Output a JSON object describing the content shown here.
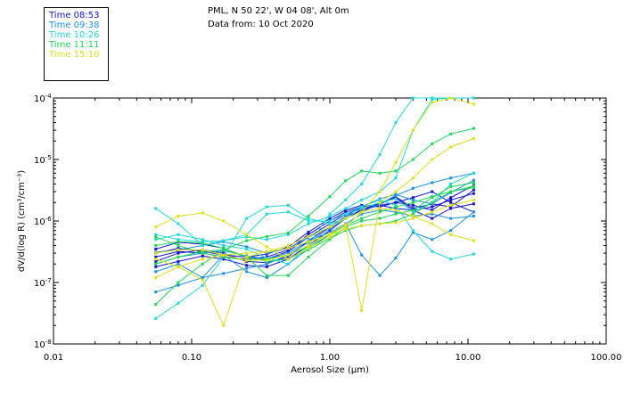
{
  "header": {
    "location": "PML, N 50 22', W 04 08', Alt 0m",
    "date_line": "Data from: 10 Oct 2020"
  },
  "legend": [
    {
      "label": "Time 08:53",
      "color": "#1414c8"
    },
    {
      "label": "Time 09:38",
      "color": "#1e90dc"
    },
    {
      "label": "Time 10:26",
      "color": "#22d8d8"
    },
    {
      "label": "Time 11:11",
      "color": "#22d65a"
    },
    {
      "label": "Time 15:10",
      "color": "#e0e020"
    }
  ],
  "chart_data": {
    "type": "line",
    "xscale": "log",
    "yscale": "log",
    "xlabel": "Aerosol Size (μm)",
    "ylabel": "dV/d(log R) (cm³/cm⁻³)",
    "xlim": [
      0.01,
      100.0
    ],
    "ylim": [
      1e-08,
      0.0001
    ],
    "x_ticks": [
      0.01,
      0.1,
      1.0,
      10.0,
      100.0
    ],
    "x_tick_labels": [
      "0.01",
      "0.10",
      "1.00",
      "10.00",
      "100.00"
    ],
    "y_ticks": [
      {
        "value": 0.0001,
        "base": "10",
        "exp": "-4"
      },
      {
        "value": 1e-05,
        "base": "10",
        "exp": "-5"
      },
      {
        "value": 1e-06,
        "base": "10",
        "exp": "-6"
      },
      {
        "value": 1e-07,
        "base": "10",
        "exp": "-7"
      },
      {
        "value": 1e-08,
        "base": "10",
        "exp": "-8"
      }
    ],
    "x": [
      0.055,
      0.08,
      0.12,
      0.17,
      0.25,
      0.35,
      0.5,
      0.7,
      1.0,
      1.3,
      1.7,
      2.3,
      3.0,
      4.0,
      5.5,
      7.5,
      11.0
    ],
    "series": [
      {
        "name": "Time 08:53",
        "color": "#1414c8",
        "values": [
          3.5e-07,
          4.5e-07,
          4.2e-07,
          3.6e-07,
          2.6e-07,
          2.4e-07,
          3.2e-07,
          5.5e-07,
          9e-07,
          1.3e-06,
          1.6e-06,
          1.8e-06,
          1.6e-06,
          1.5e-06,
          1.7e-06,
          2.2e-06,
          2.8e-06
        ]
      },
      {
        "name": "Time 08:53",
        "color": "#1414c8",
        "values": [
          2.2e-07,
          3e-07,
          3.4e-07,
          3e-07,
          2.2e-07,
          2.1e-07,
          2.6e-07,
          4.8e-07,
          8e-07,
          1.2e-06,
          1.5e-06,
          1.9e-06,
          2.4e-06,
          1.5e-06,
          1.1e-06,
          1.6e-06,
          1.9e-06
        ]
      },
      {
        "name": "Time 08:53",
        "color": "#1414c8",
        "values": [
          1.8e-07,
          2.2e-07,
          2.7e-07,
          2.4e-07,
          1.9e-07,
          1.8e-07,
          2.4e-07,
          4e-07,
          7e-07,
          1.1e-06,
          1.5e-06,
          1.8e-06,
          2e-06,
          2.4e-06,
          3e-06,
          2e-06,
          1.4e-06
        ]
      },
      {
        "name": "Time 08:53",
        "color": "#1414c8",
        "values": [
          2.6e-07,
          3.2e-07,
          3e-07,
          2.6e-07,
          2.4e-07,
          2.6e-07,
          3.4e-07,
          6e-07,
          1e-06,
          1.4e-06,
          1.7e-06,
          1.9e-06,
          2.5e-06,
          1.6e-06,
          1.9e-06,
          1.7e-06,
          3.2e-06
        ]
      },
      {
        "name": "Time 08:53",
        "color": "#1414c8",
        "values": [
          3e-07,
          3.6e-07,
          3.2e-07,
          2.8e-07,
          2.6e-07,
          2.9e-07,
          3.8e-07,
          6.6e-07,
          1.1e-06,
          1.5e-06,
          1.8e-06,
          1.7e-06,
          2e-06,
          1.8e-06,
          1.5e-06,
          2.4e-06,
          3.8e-06
        ]
      },
      {
        "name": "Time 09:38",
        "color": "#1e90dc",
        "values": [
          1.5e-07,
          2e-07,
          1.2e-07,
          2.8e-07,
          1.5e-07,
          1.2e-07,
          2e-07,
          3.5e-07,
          6e-07,
          9e-07,
          1.3e-06,
          1.5e-06,
          1.4e-06,
          1.2e-06,
          1.3e-06,
          1.1e-06,
          1.2e-06
        ]
      },
      {
        "name": "Time 09:38",
        "color": "#1e90dc",
        "values": [
          2e-07,
          2.6e-07,
          3e-07,
          3.3e-07,
          2.7e-07,
          2.4e-07,
          3e-07,
          4.8e-07,
          6.5e-07,
          9e-07,
          2.8e-07,
          1.3e-07,
          2.5e-07,
          6.5e-07,
          5e-07,
          7e-07,
          1.4e-06
        ]
      },
      {
        "name": "Time 09:38",
        "color": "#1e90dc",
        "values": [
          7e-08,
          9e-08,
          1.2e-07,
          1.4e-07,
          1.7e-07,
          2e-07,
          2.8e-07,
          4.5e-07,
          7.5e-07,
          1.1e-06,
          1.4e-06,
          1.9e-06,
          2.6e-06,
          3.4e-06,
          4.2e-06,
          5e-06,
          6e-06
        ]
      },
      {
        "name": "Time 09:38",
        "color": "#1e90dc",
        "values": [
          3.1e-07,
          3.4e-07,
          4e-07,
          4.6e-07,
          3.8e-07,
          3e-07,
          3.6e-07,
          5.4e-07,
          8e-07,
          1.2e-06,
          1.7e-06,
          2.3e-06,
          2.7e-06,
          2.2e-06,
          1.9e-06,
          2.9e-06,
          4.6e-06
        ]
      },
      {
        "name": "Time 10:26",
        "color": "#22d8d8",
        "values": [
          1.6e-06,
          9e-07,
          4e-07,
          4.8e-07,
          5.5e-07,
          5e-07,
          6e-07,
          9e-07,
          1.2e-06,
          1.6e-06,
          2.2e-06,
          3e-06,
          5e-06,
          3e-05,
          9.5e-05,
          0.0001,
          0.0001
        ]
      },
      {
        "name": "Time 10:26",
        "color": "#22d8d8",
        "values": [
          5e-07,
          6e-07,
          5e-07,
          4e-07,
          3.5e-07,
          2.5e-07,
          2e-07,
          4e-07,
          1.3e-06,
          2.2e-06,
          4e-06,
          1.2e-05,
          4e-05,
          0.0001,
          0.0001,
          0.0001,
          0.0001
        ]
      },
      {
        "name": "Time 10:26",
        "color": "#22d8d8",
        "values": [
          2.6e-08,
          4.6e-08,
          9e-08,
          2.6e-07,
          1.1e-06,
          1.7e-06,
          1.8e-06,
          1.1e-06,
          9e-07,
          1.1e-06,
          1.6e-06,
          2e-06,
          2.3e-06,
          1.4e-06,
          2e-06,
          4e-06,
          6e-06
        ]
      },
      {
        "name": "Time 10:26",
        "color": "#22d8d8",
        "values": [
          6e-07,
          5e-07,
          4.6e-07,
          4.8e-07,
          6e-07,
          1.3e-06,
          1.4e-06,
          1e-06,
          1e-06,
          1.3e-06,
          1.7e-06,
          2.2e-06,
          1.8e-06,
          7e-07,
          3.2e-07,
          2.4e-07,
          2.9e-07
        ]
      },
      {
        "name": "Time 11:11",
        "color": "#22d65a",
        "values": [
          4.4e-08,
          1e-07,
          2e-07,
          3.4e-07,
          4.8e-07,
          5.6e-07,
          6.4e-07,
          1.2e-06,
          2.5e-06,
          4.5e-06,
          6.5e-06,
          6e-06,
          6.5e-06,
          1e-05,
          1.8e-05,
          2.6e-05,
          3.2e-05
        ]
      },
      {
        "name": "Time 11:11",
        "color": "#22d65a",
        "values": [
          2e-07,
          2.6e-07,
          3.2e-07,
          3.4e-07,
          2.6e-07,
          1.3e-07,
          1.3e-07,
          2.6e-07,
          5e-07,
          8e-07,
          1e-06,
          1.1e-06,
          1.3e-06,
          1.5e-06,
          2.4e-06,
          3.6e-06,
          4.2e-06
        ]
      },
      {
        "name": "Time 11:11",
        "color": "#22d65a",
        "values": [
          4e-07,
          4.6e-07,
          4.4e-07,
          3.6e-07,
          2.6e-07,
          2.2e-07,
          2.4e-07,
          3.4e-07,
          5.2e-07,
          7e-07,
          8.4e-07,
          9e-07,
          1e-06,
          1.3e-06,
          2e-06,
          3e-06,
          3.7e-06
        ]
      },
      {
        "name": "Time 11:11",
        "color": "#22d65a",
        "values": [
          5.5e-07,
          4e-07,
          3e-07,
          2.6e-07,
          2.3e-07,
          2.4e-07,
          2.8e-07,
          3.8e-07,
          6e-07,
          8.5e-07,
          1.1e-06,
          1.4e-06,
          1.7e-06,
          2e-06,
          2.5e-06,
          3e-06,
          3.5e-06
        ]
      },
      {
        "name": "Time 15:10",
        "color": "#e0e020",
        "values": [
          8e-07,
          1.2e-06,
          1.35e-06,
          1e-06,
          6e-07,
          3.8e-07,
          2.4e-07,
          3.6e-07,
          5.4e-07,
          8e-07,
          1.4e-06,
          3e-06,
          9e-06,
          3e-05,
          8.5e-05,
          0.0001,
          8e-05
        ]
      },
      {
        "name": "Time 15:10",
        "color": "#e0e020",
        "values": [
          2.4e-07,
          1.8e-07,
          1.1e-07,
          2e-08,
          2.6e-07,
          3.2e-07,
          3.6e-07,
          4.6e-07,
          6e-07,
          7.4e-07,
          8.4e-07,
          9e-07,
          9.4e-07,
          1.1e-06,
          1.4e-06,
          1.8e-06,
          2.2e-06
        ]
      },
      {
        "name": "Time 15:10",
        "color": "#e0e020",
        "values": [
          3e-07,
          3.4e-07,
          3.4e-07,
          2.8e-07,
          2.3e-07,
          2.3e-07,
          2.8e-07,
          4e-07,
          6.2e-07,
          8.8e-07,
          3.5e-08,
          2e-06,
          3e-06,
          5e-06,
          1e-05,
          1.6e-05,
          2.2e-05
        ]
      },
      {
        "name": "Time 15:10",
        "color": "#e0e020",
        "values": [
          1.2e-07,
          1.8e-07,
          2.4e-07,
          2.8e-07,
          3e-07,
          3.2e-07,
          4e-07,
          5.6e-07,
          8e-07,
          1.1e-06,
          1.4e-06,
          1.6e-06,
          1.5e-06,
          1.2e-06,
          9e-07,
          6e-07,
          4.8e-07
        ]
      }
    ]
  }
}
